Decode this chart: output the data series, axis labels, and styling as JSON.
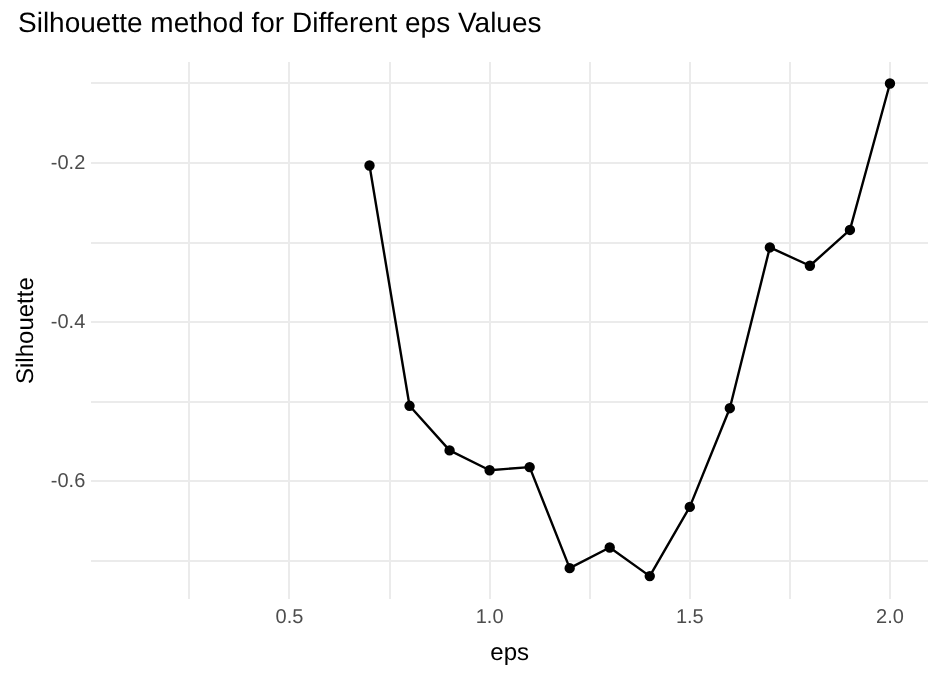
{
  "chart_data": {
    "type": "line",
    "title": "Silhouette method for Different eps Values",
    "xlabel": "eps",
    "ylabel": "Silhouette",
    "x": [
      0.7,
      0.8,
      0.9,
      1.0,
      1.1,
      1.2,
      1.3,
      1.4,
      1.5,
      1.6,
      1.7,
      1.8,
      1.9,
      2.0
    ],
    "series": [
      {
        "color": "#000000",
        "values": [
          -0.203,
          -0.505,
          -0.561,
          -0.586,
          -0.582,
          -0.709,
          -0.683,
          -0.719,
          -0.632,
          -0.508,
          -0.306,
          -0.329,
          -0.284,
          -0.1
        ]
      }
    ],
    "xlim": [
      0.005,
      2.095
    ],
    "ylim": [
      -0.748,
      -0.073
    ],
    "xticks": [
      {
        "value": 0.25,
        "label": null
      },
      0.5,
      {
        "value": 0.75,
        "label": null
      },
      {
        "value": 1.0,
        "label": "1.0"
      },
      {
        "value": 1.25,
        "label": null
      },
      1.5,
      {
        "value": 1.75,
        "label": null
      },
      {
        "value": 2.0,
        "label": "2.0"
      }
    ],
    "yticks": [
      {
        "value": -0.7,
        "label": null
      },
      -0.6,
      {
        "value": -0.5,
        "label": null
      },
      -0.4,
      {
        "value": -0.3,
        "label": null
      },
      -0.2,
      {
        "value": -0.1,
        "label": null
      }
    ],
    "grid": true,
    "marker": "circle",
    "line_style": "solid",
    "legend": false
  }
}
